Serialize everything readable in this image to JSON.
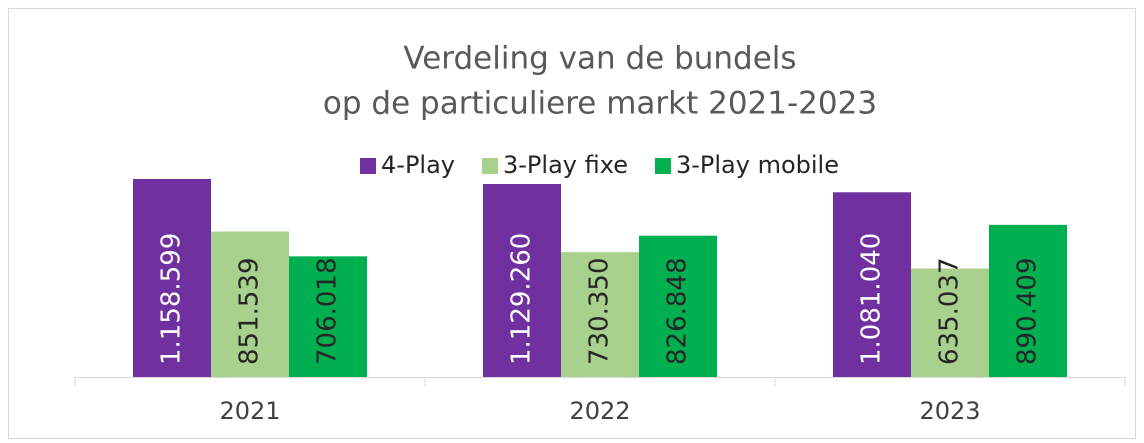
{
  "chart_data": {
    "type": "bar",
    "title": [
      "Verdeling van de bundels",
      "op de particuliere markt 2021-2023"
    ],
    "categories": [
      "2021",
      "2022",
      "2023"
    ],
    "series": [
      {
        "name": "4-Play",
        "color": "#7030a0",
        "values": [
          1158599,
          1129260,
          1081040
        ],
        "value_labels": [
          "1.158.599",
          "1.129.260",
          "1.081.040"
        ]
      },
      {
        "name": "3-Play fixe",
        "color": "#a9d18e",
        "values": [
          851539,
          730350,
          635037
        ],
        "value_labels": [
          "851.539",
          "730.350",
          "635.037"
        ]
      },
      {
        "name": "3-Play mobile",
        "color": "#00b050",
        "values": [
          706018,
          826848,
          890409
        ],
        "value_labels": [
          "706.018",
          "826.848",
          "890.409"
        ]
      }
    ],
    "legend": "top"
  }
}
